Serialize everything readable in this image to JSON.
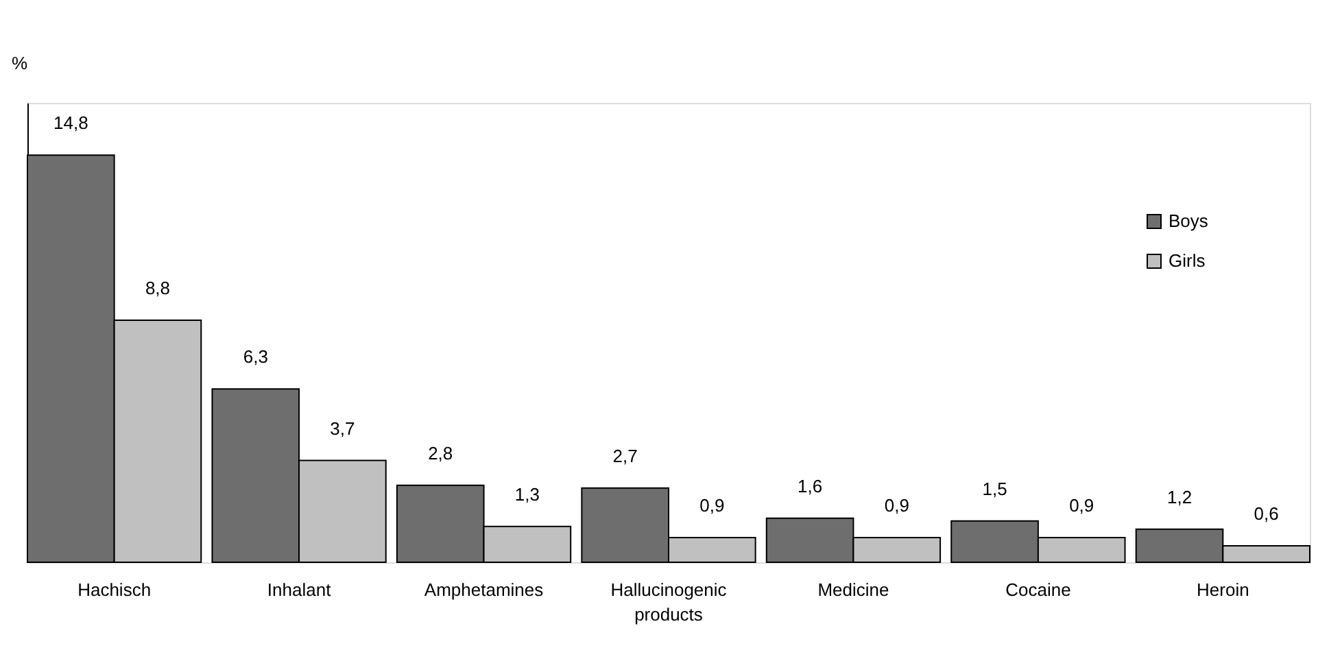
{
  "chart_data": {
    "type": "bar",
    "ylabel": "%",
    "categories": [
      "Hachisch",
      "Inhalant",
      "Amphetamines",
      "Hallucinogenic products",
      "Medicine",
      "Cocaine",
      "Heroin"
    ],
    "series": [
      {
        "name": "Boys",
        "color": "#6e6e6e",
        "values": [
          14.8,
          6.3,
          2.8,
          2.7,
          1.6,
          1.5,
          1.2
        ],
        "value_labels": [
          "14,8",
          "6,3",
          "2,8",
          "2,7",
          "1,6",
          "1,5",
          "1,2"
        ]
      },
      {
        "name": "Girls",
        "color": "#c0c0c0",
        "values": [
          8.8,
          3.7,
          1.3,
          0.9,
          0.9,
          0.9,
          0.6
        ],
        "value_labels": [
          "8,8",
          "3,7",
          "1,3",
          "0,9",
          "0,9",
          "0,9",
          "0,6"
        ]
      }
    ],
    "ylim": [
      0,
      16.7
    ],
    "tick_labels": "x",
    "grid": false,
    "legend": "right"
  }
}
